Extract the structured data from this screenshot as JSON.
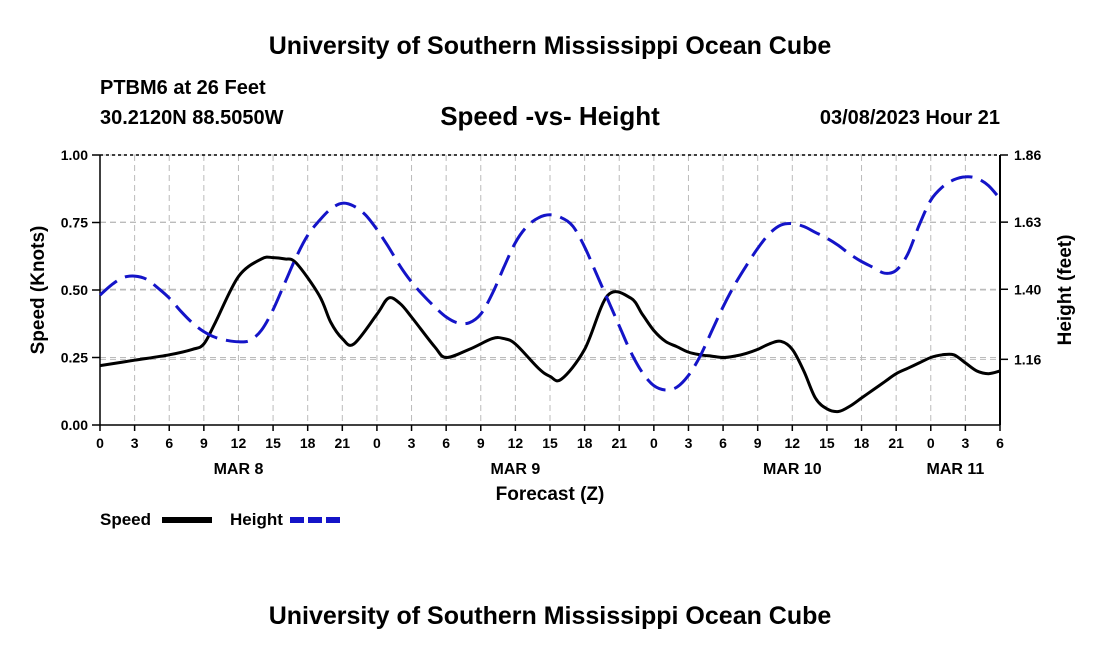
{
  "page": {
    "title_top": "University of Southern Mississippi Ocean Cube",
    "title_bottom": "University of Southern Mississippi Ocean Cube",
    "station_line": "PTBM6 at 26 Feet",
    "coords_line": "30.2120N  88.5050W",
    "chart_title": "Speed -vs- Height",
    "datetime": "03/08/2023 Hour 21"
  },
  "chart_data": {
    "type": "line",
    "title": "Speed -vs- Height",
    "xlabel": "Forecast (Z)",
    "ylabel": "Speed (Knots)",
    "y2label": "Height (feet)",
    "x_range": [
      0,
      78
    ],
    "ylim": [
      0,
      1.0
    ],
    "y2lim": [
      0.935,
      1.86
    ],
    "y_ticks": [
      "0.00",
      "0.25",
      "0.50",
      "0.75",
      "1.00"
    ],
    "y2_ticks": [
      "1.16",
      "1.40",
      "1.63",
      "1.86"
    ],
    "y2_tick_values": [
      1.16,
      1.4,
      1.63,
      1.86
    ],
    "x_tick_labels": [
      "0",
      "3",
      "6",
      "9",
      "12",
      "15",
      "18",
      "21",
      "0",
      "3",
      "6",
      "9",
      "12",
      "15",
      "18",
      "21",
      "0",
      "3",
      "6",
      "9",
      "12",
      "15",
      "18",
      "21",
      "0",
      "3",
      "6"
    ],
    "date_labels": [
      {
        "label": "MAR 8",
        "hour": 12
      },
      {
        "label": "MAR 9",
        "hour": 36
      },
      {
        "label": "MAR 10",
        "hour": 60
      },
      {
        "label": "MAR 11",
        "hour": 75
      }
    ],
    "grid": true,
    "legend": "bottom-left",
    "series": [
      {
        "name": "Speed",
        "axis": "left",
        "color": "#000000",
        "dash": "solid",
        "x": [
          0,
          3,
          6,
          8,
          9,
          10,
          12,
          14,
          15,
          16,
          17,
          19,
          20,
          21,
          22,
          24,
          25,
          26,
          27,
          29,
          30,
          32,
          34,
          35,
          36,
          38,
          39,
          40,
          42,
          44,
          46,
          47,
          48,
          49,
          50,
          51,
          52,
          53,
          54,
          55,
          56,
          57,
          58,
          59,
          60,
          61,
          62,
          63,
          64,
          65,
          66,
          67,
          68,
          69,
          70,
          71,
          72,
          73,
          74,
          75,
          76,
          77,
          78
        ],
        "values": [
          0.22,
          0.24,
          0.26,
          0.28,
          0.3,
          0.38,
          0.55,
          0.615,
          0.62,
          0.615,
          0.6,
          0.48,
          0.38,
          0.32,
          0.3,
          0.41,
          0.47,
          0.45,
          0.4,
          0.29,
          0.25,
          0.28,
          0.32,
          0.32,
          0.3,
          0.21,
          0.18,
          0.17,
          0.28,
          0.48,
          0.47,
          0.41,
          0.35,
          0.31,
          0.29,
          0.27,
          0.26,
          0.255,
          0.25,
          0.255,
          0.265,
          0.28,
          0.3,
          0.31,
          0.28,
          0.2,
          0.1,
          0.06,
          0.05,
          0.07,
          0.1,
          0.13,
          0.16,
          0.19,
          0.21,
          0.23,
          0.25,
          0.26,
          0.26,
          0.23,
          0.2,
          0.19,
          0.2
        ]
      },
      {
        "name": "Height",
        "axis": "right",
        "color": "#1414c8",
        "dash": "dashed",
        "x": [
          0,
          1,
          2,
          3,
          4,
          5,
          6,
          7,
          8,
          9,
          10,
          11,
          12,
          13,
          14,
          15,
          16,
          17,
          18,
          19,
          20,
          21,
          22,
          23,
          24,
          25,
          26,
          27,
          28,
          29,
          30,
          31,
          32,
          33,
          34,
          35,
          36,
          37,
          38,
          39,
          40,
          41,
          42,
          43,
          44,
          45,
          46,
          47,
          48,
          49,
          50,
          51,
          52,
          53,
          54,
          55,
          56,
          57,
          58,
          59,
          60,
          61,
          62,
          63,
          64,
          65,
          66,
          67,
          68,
          69,
          70,
          71,
          72,
          73,
          74,
          75,
          76,
          77,
          78
        ],
        "values": [
          1.38,
          1.415,
          1.44,
          1.445,
          1.435,
          1.405,
          1.37,
          1.325,
          1.285,
          1.255,
          1.235,
          1.225,
          1.22,
          1.225,
          1.26,
          1.33,
          1.42,
          1.51,
          1.585,
          1.635,
          1.675,
          1.695,
          1.685,
          1.655,
          1.605,
          1.545,
          1.48,
          1.425,
          1.38,
          1.34,
          1.305,
          1.285,
          1.285,
          1.315,
          1.385,
          1.475,
          1.56,
          1.615,
          1.645,
          1.655,
          1.645,
          1.615,
          1.545,
          1.455,
          1.365,
          1.275,
          1.185,
          1.115,
          1.07,
          1.055,
          1.065,
          1.105,
          1.17,
          1.255,
          1.34,
          1.415,
          1.48,
          1.54,
          1.59,
          1.62,
          1.625,
          1.615,
          1.595,
          1.575,
          1.55,
          1.52,
          1.495,
          1.475,
          1.455,
          1.465,
          1.52,
          1.62,
          1.705,
          1.75,
          1.775,
          1.785,
          1.78,
          1.755,
          1.71
        ]
      }
    ]
  },
  "legend": {
    "speed_label": "Speed",
    "height_label": "Height",
    "speed_color": "#000000",
    "height_color": "#1414c8"
  }
}
